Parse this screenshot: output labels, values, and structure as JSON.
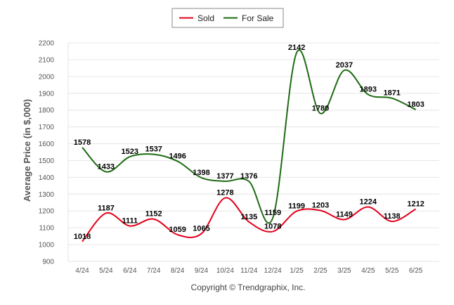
{
  "chart_data": {
    "type": "line",
    "title": "",
    "xlabel": "",
    "ylabel": "Average Price (in $,000)",
    "ylim": [
      900,
      2200
    ],
    "y_ticks": [
      900,
      1000,
      1100,
      1200,
      1300,
      1400,
      1500,
      1600,
      1700,
      1800,
      1900,
      2000,
      2100,
      2200
    ],
    "grid": "horizontal",
    "legend_position": "top-center",
    "categories": [
      "4/24",
      "5/24",
      "6/24",
      "7/24",
      "8/24",
      "9/24",
      "10/24",
      "11/24",
      "12/24",
      "1/25",
      "2/25",
      "3/25",
      "4/25",
      "5/25",
      "6/25"
    ],
    "series": [
      {
        "name": "Sold",
        "color": "#e3001b",
        "values": [
          1018,
          1187,
          1111,
          1152,
          1059,
          1065,
          1278,
          1135,
          1078,
          1199,
          1203,
          1149,
          1224,
          1138,
          1212
        ]
      },
      {
        "name": "For Sale",
        "color": "#1d6b12",
        "values": [
          1578,
          1433,
          1523,
          1537,
          1496,
          1398,
          1377,
          1376,
          1159,
          2142,
          1780,
          2037,
          1893,
          1871,
          1803
        ]
      }
    ]
  },
  "footer": "Copyright © Trendgraphix, Inc."
}
